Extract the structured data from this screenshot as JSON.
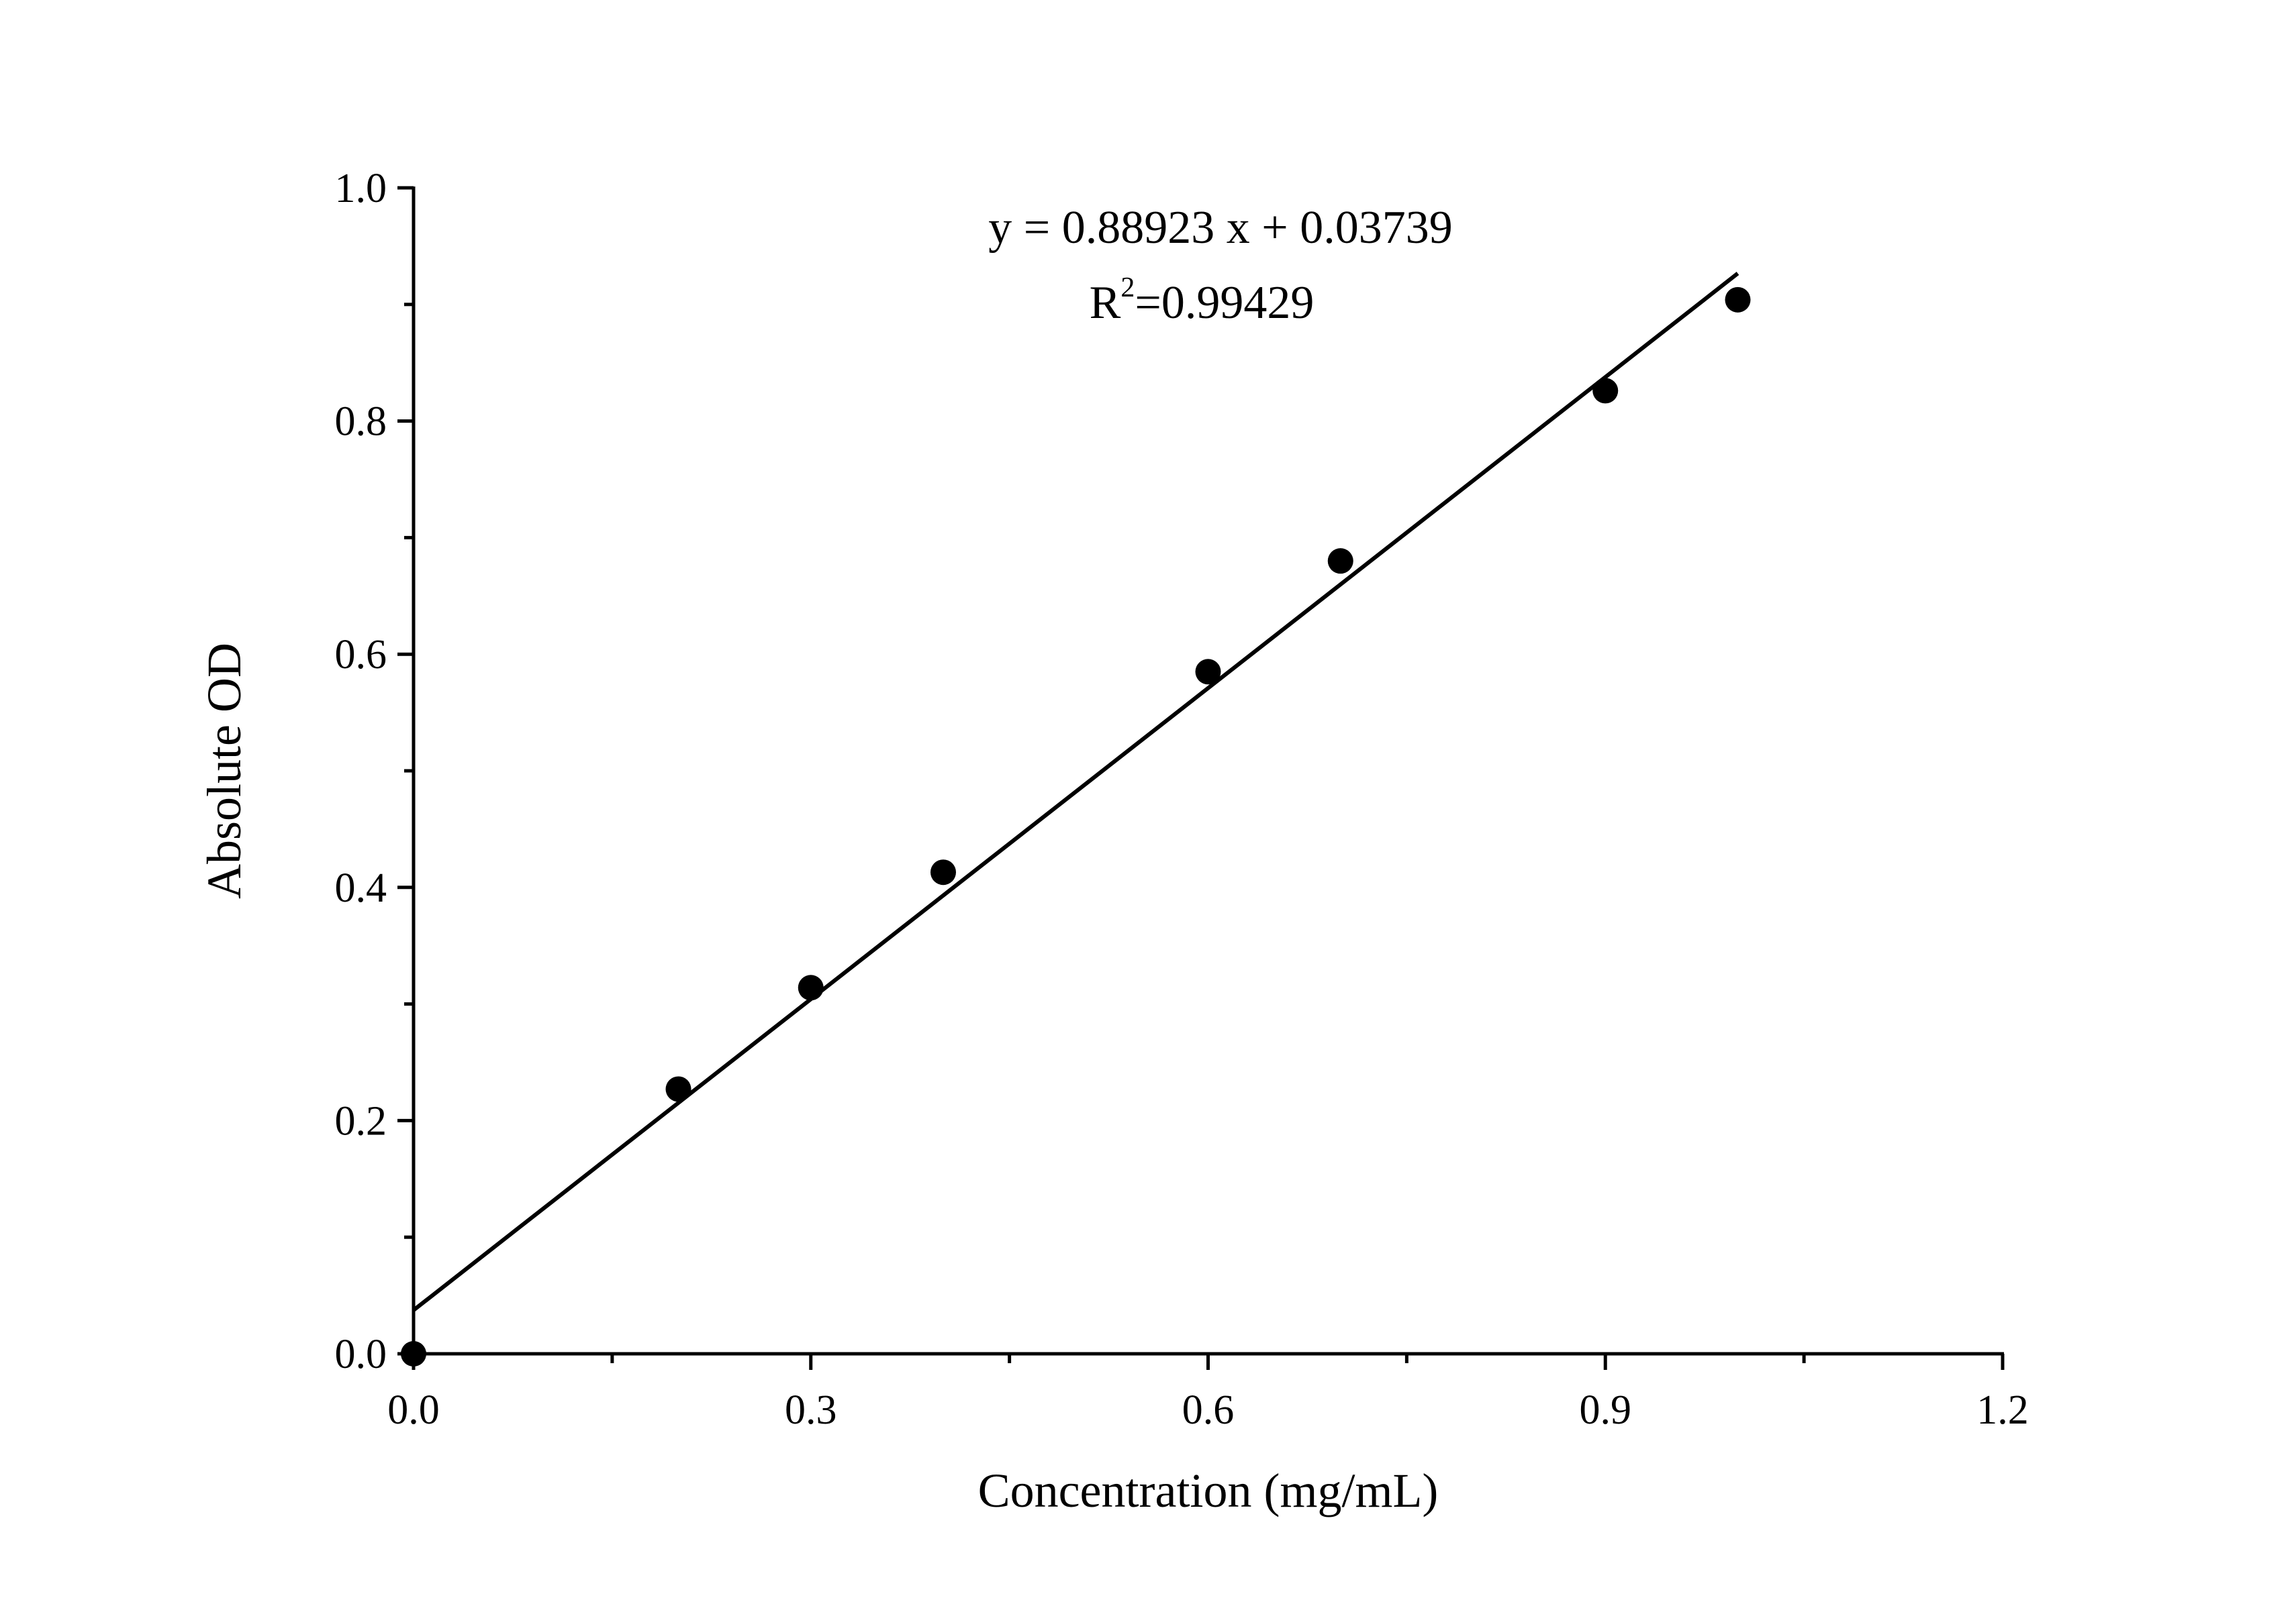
{
  "chart_data": {
    "type": "scatter",
    "title": "",
    "xlabel": "Concentration (mg/mL)",
    "ylabel": "Absolute OD",
    "xlim": [
      0,
      1.2
    ],
    "ylim": [
      0,
      1.0
    ],
    "x_ticks": [
      0.0,
      0.3,
      0.6,
      0.9,
      1.2
    ],
    "x_tick_labels": [
      "0.0",
      "0.3",
      "0.6",
      "0.9",
      "1.2"
    ],
    "x_minor_ticks": [
      0.15,
      0.45,
      0.75,
      1.05
    ],
    "y_ticks": [
      0.0,
      0.2,
      0.4,
      0.6,
      0.8,
      1.0
    ],
    "y_tick_labels": [
      "0.0",
      "0.2",
      "0.4",
      "0.6",
      "0.8",
      "1.0"
    ],
    "y_minor_ticks": [
      0.1,
      0.3,
      0.5,
      0.7,
      0.9
    ],
    "grid": false,
    "legend": "none",
    "marker_color": "#000000",
    "line_color": "#000000",
    "series": [
      {
        "x": [
          0.0,
          0.2,
          0.3,
          0.4,
          0.6,
          0.7,
          0.9,
          1.0
        ],
        "y": [
          0.0,
          0.227,
          0.314,
          0.413,
          0.585,
          0.68,
          0.826,
          0.904
        ]
      }
    ],
    "fit_line": {
      "slope": 0.88923,
      "intercept": 0.03739,
      "x_range": [
        0.0,
        1.0
      ]
    },
    "annotations": {
      "equation": "y = 0.88923 x + 0.03739",
      "r2_prefix": "R",
      "r2_sup": "2",
      "r2_value": "=0.99429"
    }
  }
}
